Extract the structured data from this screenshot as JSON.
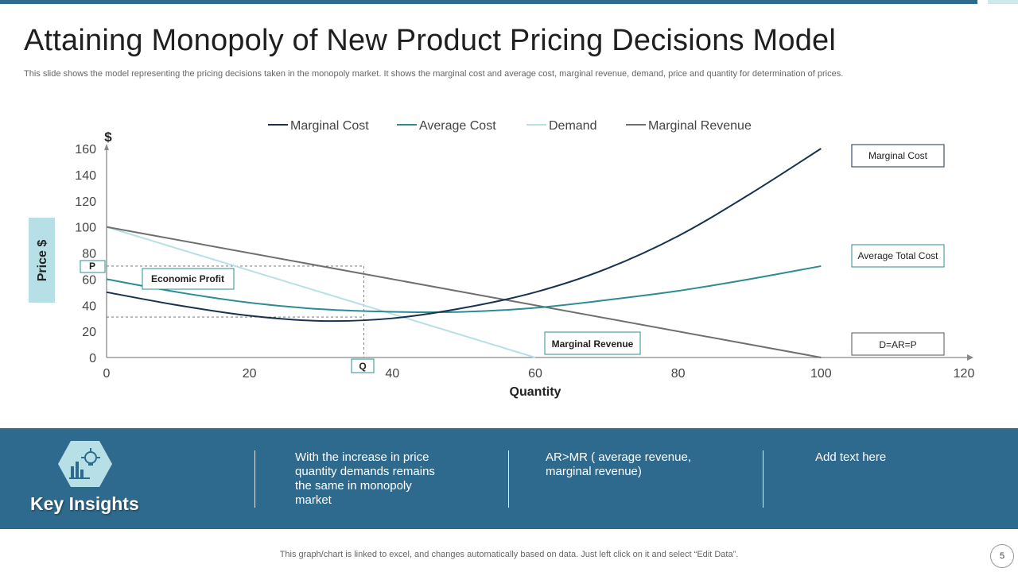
{
  "slide": {
    "title": "Attaining  Monopoly of New Product Pricing Decisions Model",
    "subtitle": "This slide shows the model representing the pricing decisions taken in the  monopoly market. It shows the marginal cost and average cost, marginal revenue, demand, price and quantity for  determination of prices.",
    "footer": "This graph/chart is linked to excel,  and changes automatically based on data. Just left click on it and select “Edit Data”.",
    "page_number": "5"
  },
  "colors": {
    "accent": "#2e6a8e",
    "marginal_cost": "#17324f",
    "average_cost": "#2d8b95",
    "demand": "#b7e0e6",
    "marginal_revenue": "#6f6f6f"
  },
  "chart_data": {
    "type": "line",
    "ylabel": "Price $",
    "ylabel_secondary": "$",
    "xlabel": "Quantity",
    "xlim": [
      0,
      120
    ],
    "ylim": [
      0,
      160
    ],
    "x_ticks": [
      "0",
      "20",
      "40",
      "60",
      "80",
      "100",
      "120"
    ],
    "y_ticks": [
      "0",
      "20",
      "40",
      "60",
      "80",
      "100",
      "120",
      "140",
      "160"
    ],
    "legend": [
      "Marginal Cost",
      "Average Cost",
      "Demand",
      "Marginal Revenue"
    ],
    "series": [
      {
        "name": "Marginal Cost",
        "x": [
          0,
          10,
          20,
          30,
          40,
          50,
          60,
          70,
          80,
          90,
          100
        ],
        "y": [
          50,
          40,
          32,
          28,
          30,
          38,
          50,
          68,
          93,
          125,
          160
        ]
      },
      {
        "name": "Average Cost",
        "x": [
          0,
          10,
          20,
          30,
          40,
          50,
          60,
          70,
          80,
          90,
          100
        ],
        "y": [
          60,
          50,
          42,
          37,
          35,
          35,
          38,
          44,
          51,
          60,
          70
        ]
      },
      {
        "name": "Demand",
        "x": [
          0,
          60
        ],
        "y": [
          100,
          0
        ]
      },
      {
        "name": "Marginal Revenue",
        "x": [
          0,
          100
        ],
        "y": [
          100,
          0
        ]
      }
    ],
    "reference": {
      "price": 70,
      "cost": 31,
      "quantity": 36
    },
    "annotations": {
      "p_label": "P",
      "q_label": "Q",
      "economic_profit": "Economic Profit",
      "marginal_revenue": "Marginal Revenue",
      "marginal_cost_box": "Marginal Cost",
      "average_total_cost_box": "Average Total Cost",
      "demand_box": "D=AR=P"
    }
  },
  "insights": {
    "title": "Key Insights",
    "items": [
      "With the increase in price quantity demands remains the same in monopoly market",
      "AR>MR ( average revenue, marginal revenue)",
      "Add text here"
    ]
  }
}
